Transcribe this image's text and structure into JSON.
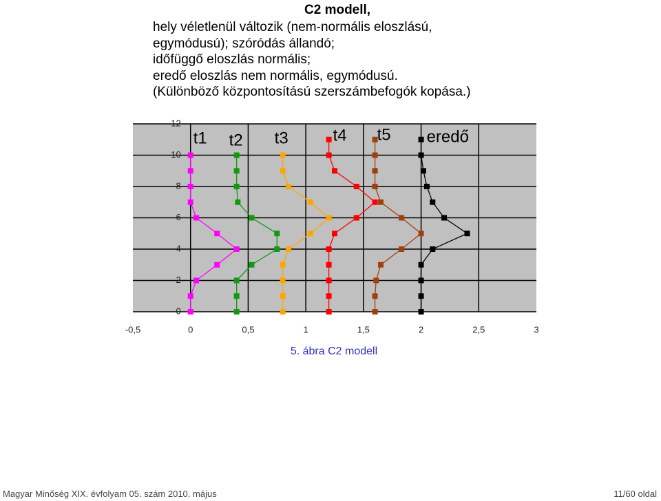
{
  "heading": "C2 modell,",
  "lines": [
    "hely véletlenül változik (nem-normális eloszlású,",
    "egymódusú); szóródás állandó;",
    "időfüggő eloszlás normális;",
    "eredő eloszlás nem normális, egymódusú.",
    "(Különböző központosítású szerszámbefogók kopása.)"
  ],
  "chart_data": {
    "type": "line",
    "caption": "5. ábra C2 modell",
    "xlim": [
      -0.5,
      3
    ],
    "xticks": [
      {
        "value": -0.5,
        "label": "-0,5"
      },
      0,
      {
        "value": 0.5,
        "label": "0,5"
      },
      1,
      {
        "value": 1.5,
        "label": "1,5"
      },
      2,
      {
        "value": 2.5,
        "label": "2,5"
      },
      3
    ],
    "ylim": [
      0,
      12
    ],
    "yticks": [
      0,
      2,
      4,
      6,
      8,
      10,
      12
    ],
    "grid": true,
    "series": [
      {
        "name": "t1",
        "color": "#ff00ff",
        "x": [
          0,
          0,
          0.05,
          0.23,
          0.4,
          0.23,
          0.05,
          0,
          0,
          0,
          0
        ],
        "y": [
          0,
          1,
          2,
          3,
          4,
          5,
          6,
          7,
          8,
          9,
          10
        ]
      },
      {
        "name": "t2",
        "color": "#119911",
        "x": [
          0.4,
          0.4,
          0.4,
          0.53,
          0.75,
          0.75,
          0.53,
          0.41,
          0.4,
          0.4,
          0.4
        ],
        "y": [
          0,
          1,
          2,
          3,
          4,
          5,
          6,
          7,
          8,
          9,
          10
        ]
      },
      {
        "name": "t3",
        "color": "#ffa500",
        "x": [
          0.8,
          0.8,
          0.8,
          0.8,
          0.85,
          1.04,
          1.2,
          1.04,
          0.85,
          0.8,
          0.8
        ],
        "y": [
          0,
          1,
          2,
          3,
          4,
          5,
          6,
          7,
          8,
          9,
          10
        ]
      },
      {
        "name": "t4",
        "color": "#ff0000",
        "x": [
          1.2,
          1.2,
          1.2,
          1.2,
          1.2,
          1.25,
          1.44,
          1.6,
          1.44,
          1.25,
          1.2,
          1.2
        ],
        "y": [
          0,
          1,
          2,
          3,
          4,
          5,
          6,
          7,
          8,
          9,
          10,
          11
        ]
      },
      {
        "name": "t5",
        "color": "#a0400a",
        "x": [
          1.6,
          1.6,
          1.61,
          1.65,
          1.83,
          2.0,
          1.83,
          1.65,
          1.6,
          1.6,
          1.6,
          1.6
        ],
        "y": [
          0,
          1,
          2,
          3,
          4,
          5,
          6,
          7,
          8,
          9,
          10,
          11
        ]
      },
      {
        "name": "eredő",
        "color": "#000000",
        "x": [
          2.0,
          2.0,
          2.0,
          2.0,
          2.1,
          2.4,
          2.2,
          2.1,
          2.05,
          2.02,
          2.0,
          2.0
        ],
        "y": [
          0,
          1,
          2,
          3,
          4,
          5,
          6,
          7,
          8,
          9,
          10,
          11
        ]
      }
    ]
  },
  "footer": {
    "left": "Magyar Minőség XIX. évfolyam 05. szám 2010. május",
    "right": "11/60 oldal"
  }
}
